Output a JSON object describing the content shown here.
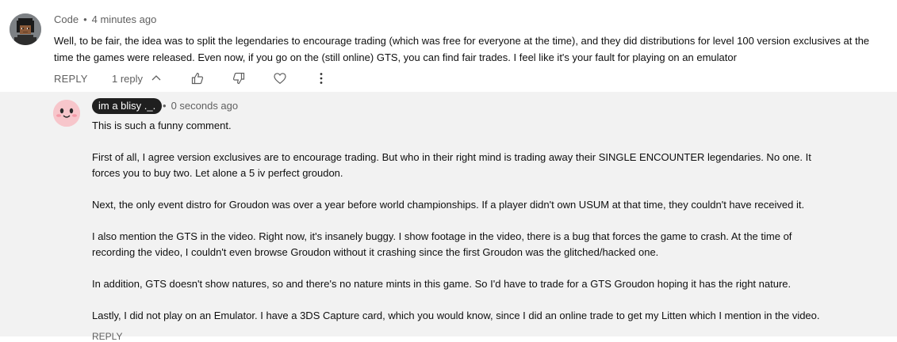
{
  "comment": {
    "author": "Code",
    "separator": "•",
    "time": "4 minutes ago",
    "text": "Well, to be fair, the idea was to split the legendaries to encourage trading (which was free for everyone at the time), and they did distributions for level 100 version exclusives at the time the games were released. Even now, if you go on the (still online) GTS, you can find fair trades. I feel like it's your fault for playing on an emulator",
    "actions": {
      "reply": "REPLY",
      "replies_count": "1 reply"
    },
    "icons": [
      "chevron-up-icon",
      "thumbs-up-icon",
      "thumbs-down-icon",
      "heart-icon",
      "more-vert-icon"
    ]
  },
  "reply": {
    "author": "im a blisy ._.",
    "separator": "•",
    "time": "0 seconds ago",
    "paragraphs": [
      "This is such a funny comment.",
      "First of all, I agree version exclusives are to encourage trading. But who in their right mind is trading away their SINGLE ENCOUNTER legendaries. No one. It forces you to buy two. Let alone a 5 iv perfect groudon.",
      "Next, the only event distro for Groudon was over a year before world championships. If a player didn't own USUM at that time, they couldn't have received it.",
      "I also mention the GTS in the video. Right now, it's insanely buggy. I show footage in the video, there is a bug that forces the game to crash. At the time of recording the video, I couldn't even browse Groudon without it crashing since the first Groudon was the glitched/hacked one.",
      "In addition, GTS doesn't show natures, so and there's no nature mints in this game. So I'd have to trade for a GTS Groudon hoping it has the right nature.",
      "Lastly, I did not play on an Emulator. I have a 3DS Capture card, which you would know, since I did an online trade to get my Litten which I mention in the video."
    ],
    "cut_actions": "REPLY"
  },
  "colors": {
    "reply_background": "#f2f2f2",
    "meta_text": "#606060",
    "body_text": "#0f0f0f",
    "author_chip": "#1f1f1f"
  }
}
